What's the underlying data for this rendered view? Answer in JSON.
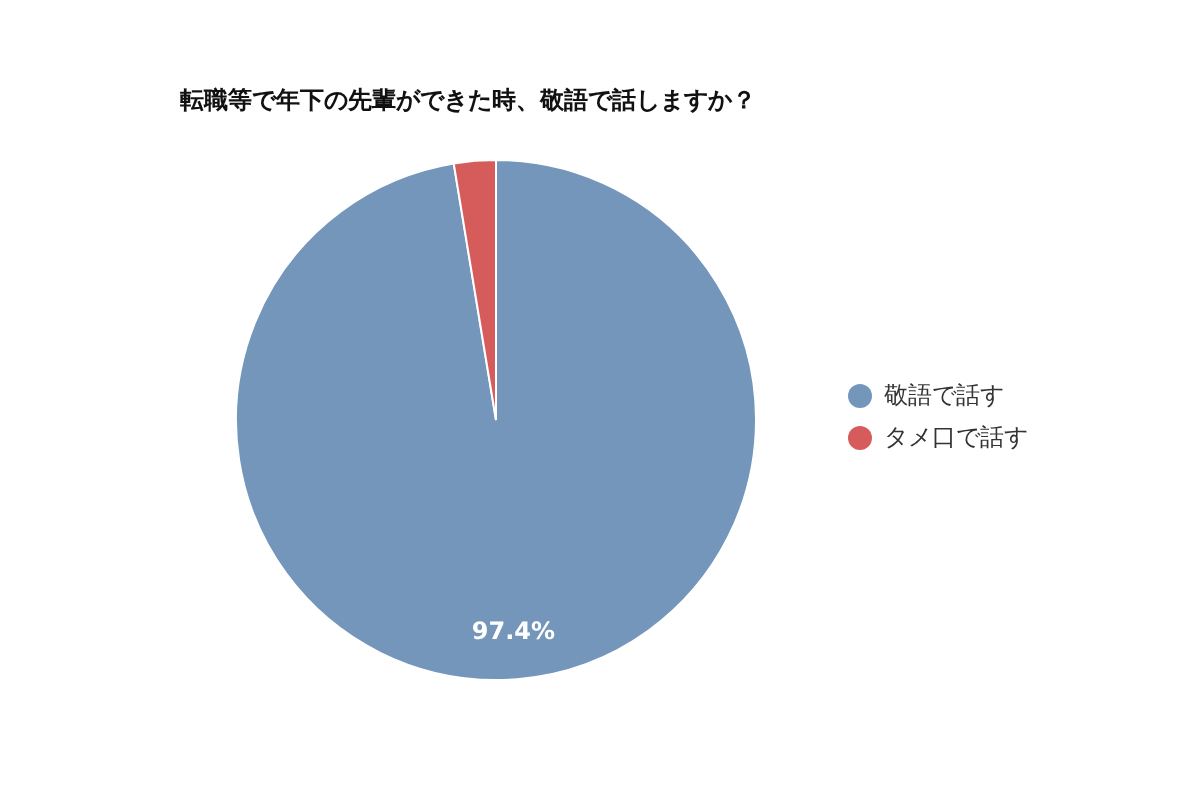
{
  "chart_data": {
    "type": "pie",
    "title": "転職等で年下の先輩ができた時、敬語で話しますか？",
    "categories": [
      "敬語で話す",
      "タメ口で話す"
    ],
    "values": [
      97.4,
      2.6
    ],
    "colors": [
      "#7596bb",
      "#d65c5b"
    ],
    "value_labels": [
      "97.4%",
      null
    ],
    "legend": "right"
  }
}
